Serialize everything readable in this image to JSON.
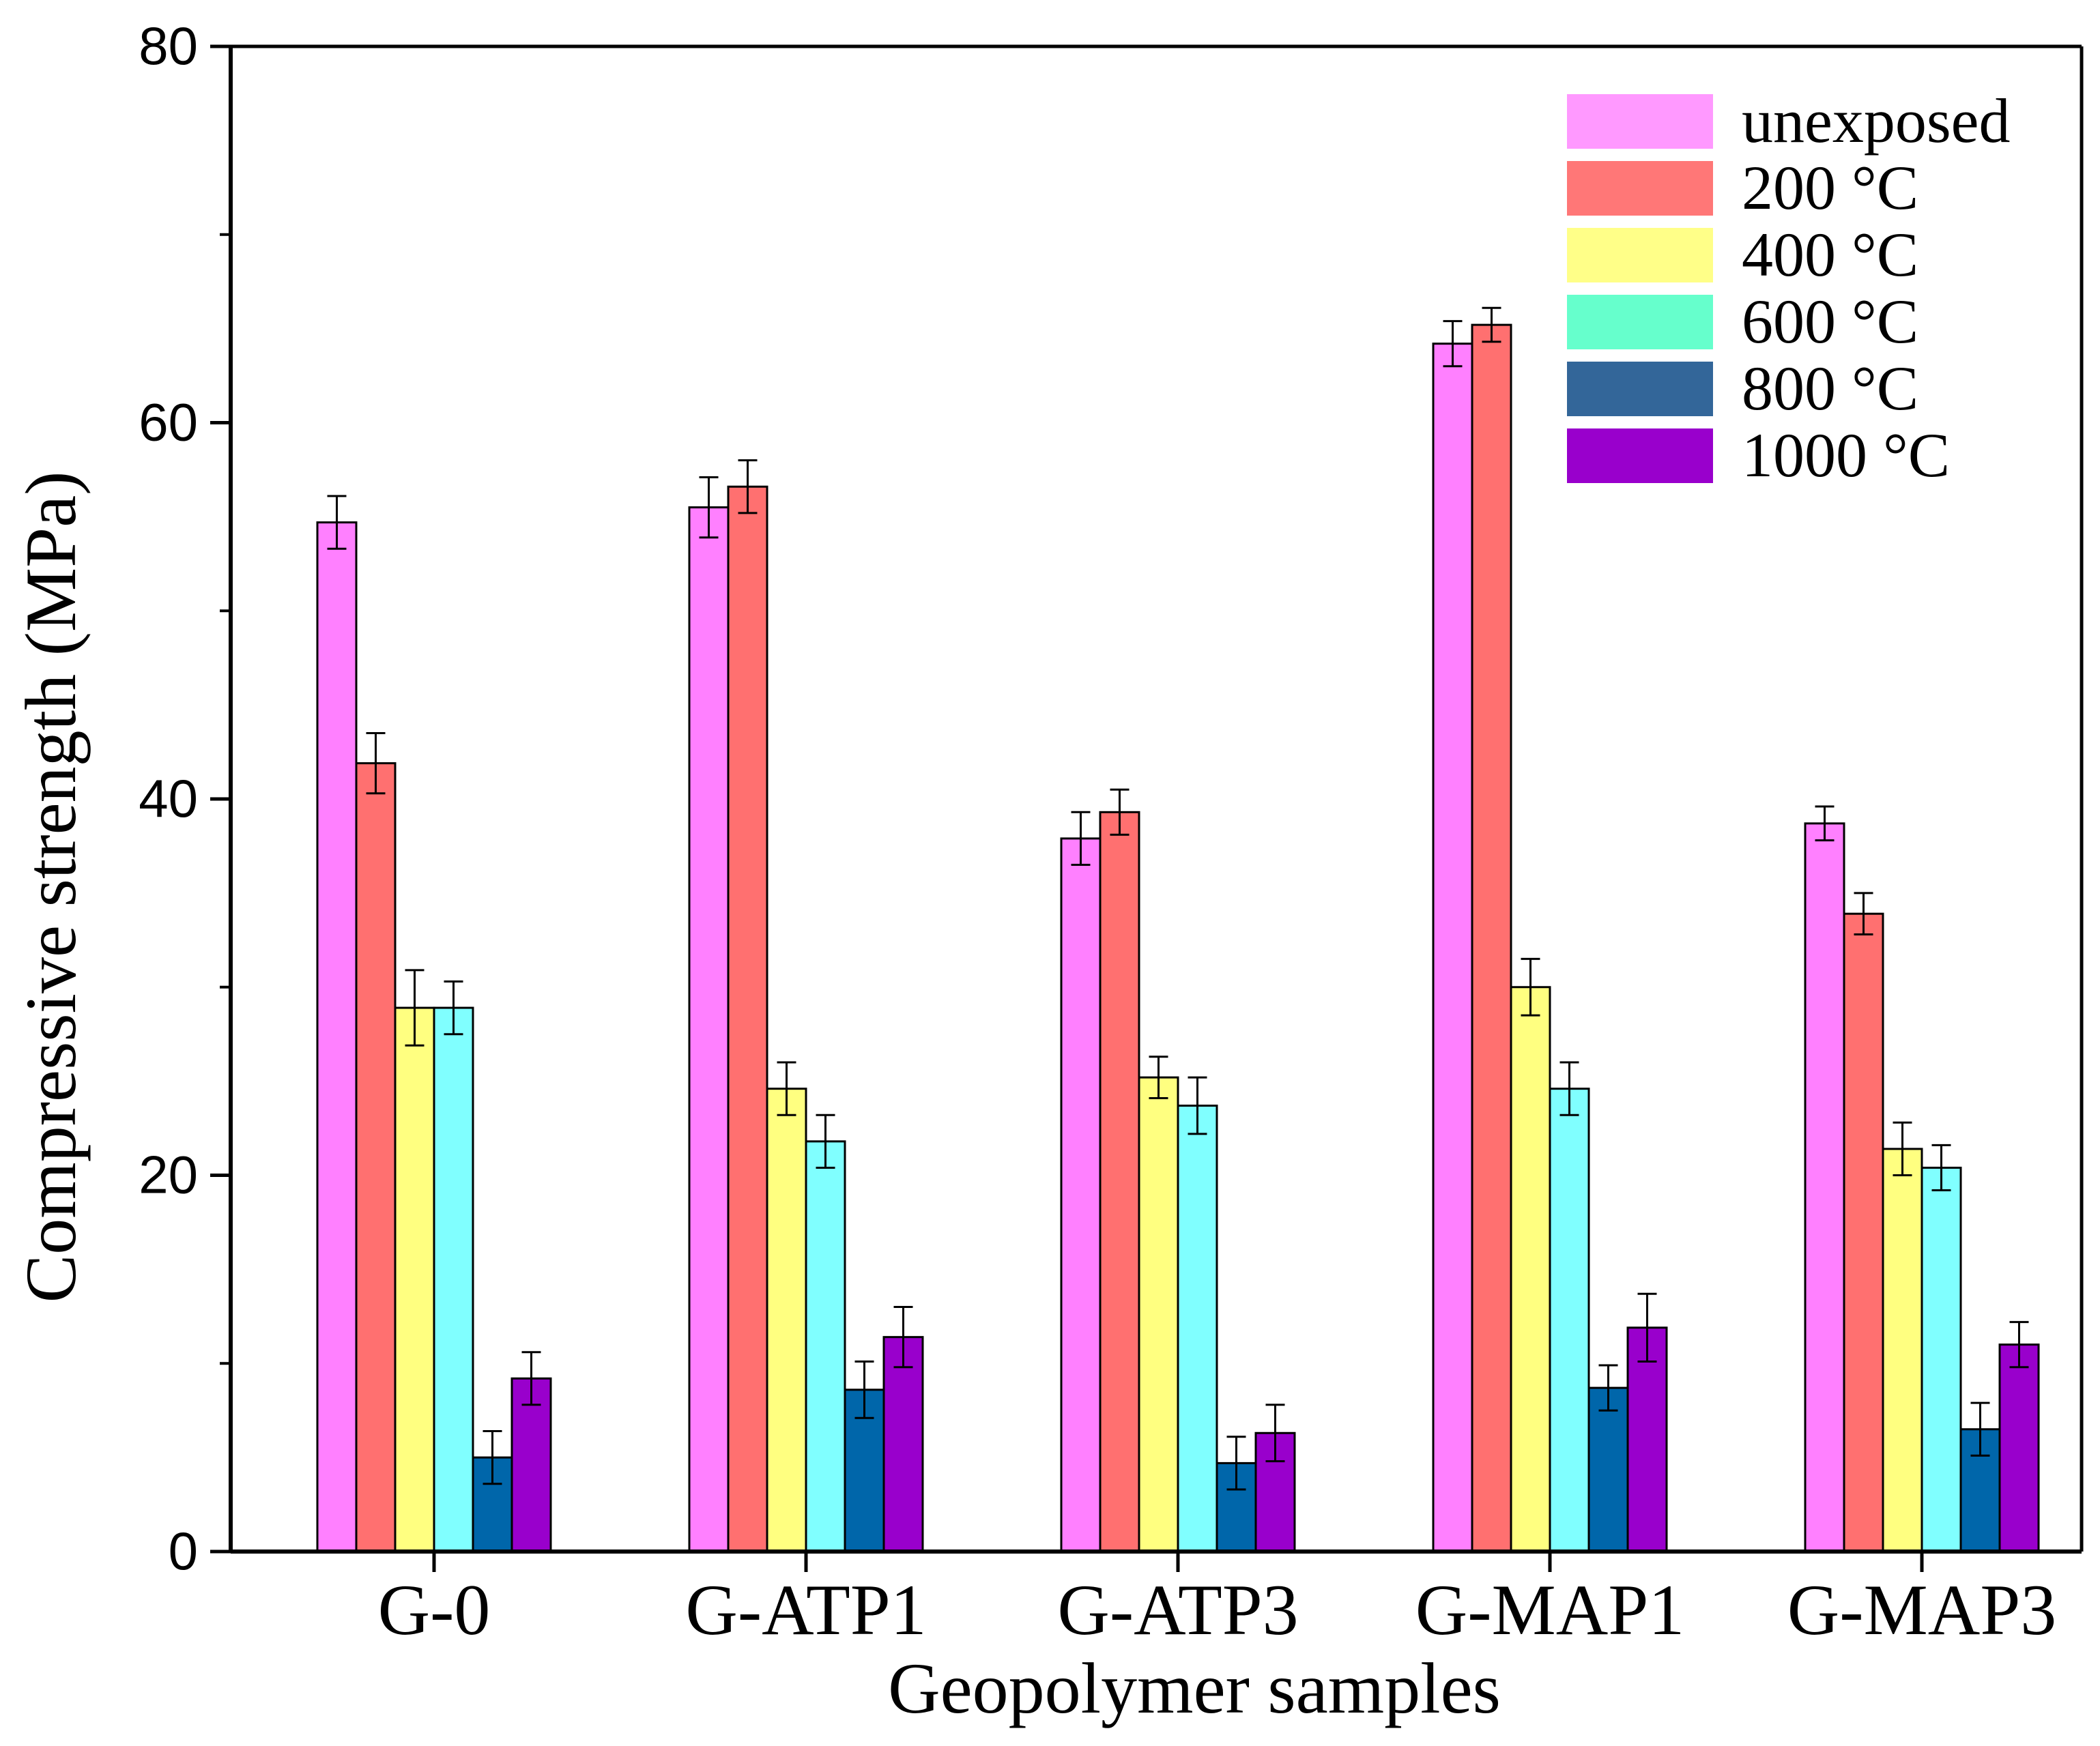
{
  "chart_data": {
    "type": "bar",
    "title": "",
    "xlabel": "Geopolymer samples",
    "ylabel": "Compressive strength (MPa)",
    "ylim": [
      0,
      80
    ],
    "yticks": [
      "0",
      "20",
      "40",
      "60",
      "80"
    ],
    "ytick_values": [
      0,
      20,
      40,
      60,
      80
    ],
    "categories": [
      "G-0",
      "G-ATP1",
      "G-ATP3",
      "G-MAP1",
      "G-MAP3"
    ],
    "legend_position": "top-right",
    "series": [
      {
        "name": "unexposed",
        "color": "#FF80FF",
        "values": [
          54.7,
          55.5,
          37.9,
          64.2,
          38.7
        ],
        "errors": [
          1.4,
          1.6,
          1.4,
          1.2,
          0.9
        ]
      },
      {
        "name": "200 °C",
        "color": "#FF7070",
        "values": [
          41.9,
          56.6,
          39.3,
          65.2,
          33.9
        ],
        "errors": [
          1.6,
          1.4,
          1.2,
          0.9,
          1.1
        ]
      },
      {
        "name": "400 °C",
        "color": "#FFFF80",
        "values": [
          28.9,
          24.6,
          25.2,
          30.0,
          21.4
        ],
        "errors": [
          2.0,
          1.4,
          1.1,
          1.5,
          1.4
        ]
      },
      {
        "name": "600 °C",
        "color": "#80FFFF",
        "values": [
          28.9,
          21.8,
          23.7,
          24.6,
          20.4
        ],
        "errors": [
          1.4,
          1.4,
          1.5,
          1.4,
          1.2
        ]
      },
      {
        "name": "800 °C",
        "color": "#0066AA",
        "values": [
          5.0,
          8.6,
          4.7,
          8.7,
          6.5
        ],
        "errors": [
          1.4,
          1.5,
          1.4,
          1.2,
          1.4
        ]
      },
      {
        "name": "1000 °C",
        "color": "#9900CC",
        "values": [
          9.2,
          11.4,
          6.3,
          11.9,
          11.0
        ],
        "errors": [
          1.4,
          1.6,
          1.5,
          1.8,
          1.2
        ]
      }
    ]
  },
  "legend": {
    "colors": [
      "#FF99FF",
      "#FF7777",
      "#FFFF88",
      "#66FFCC",
      "#336699",
      "#9900CC"
    ]
  }
}
